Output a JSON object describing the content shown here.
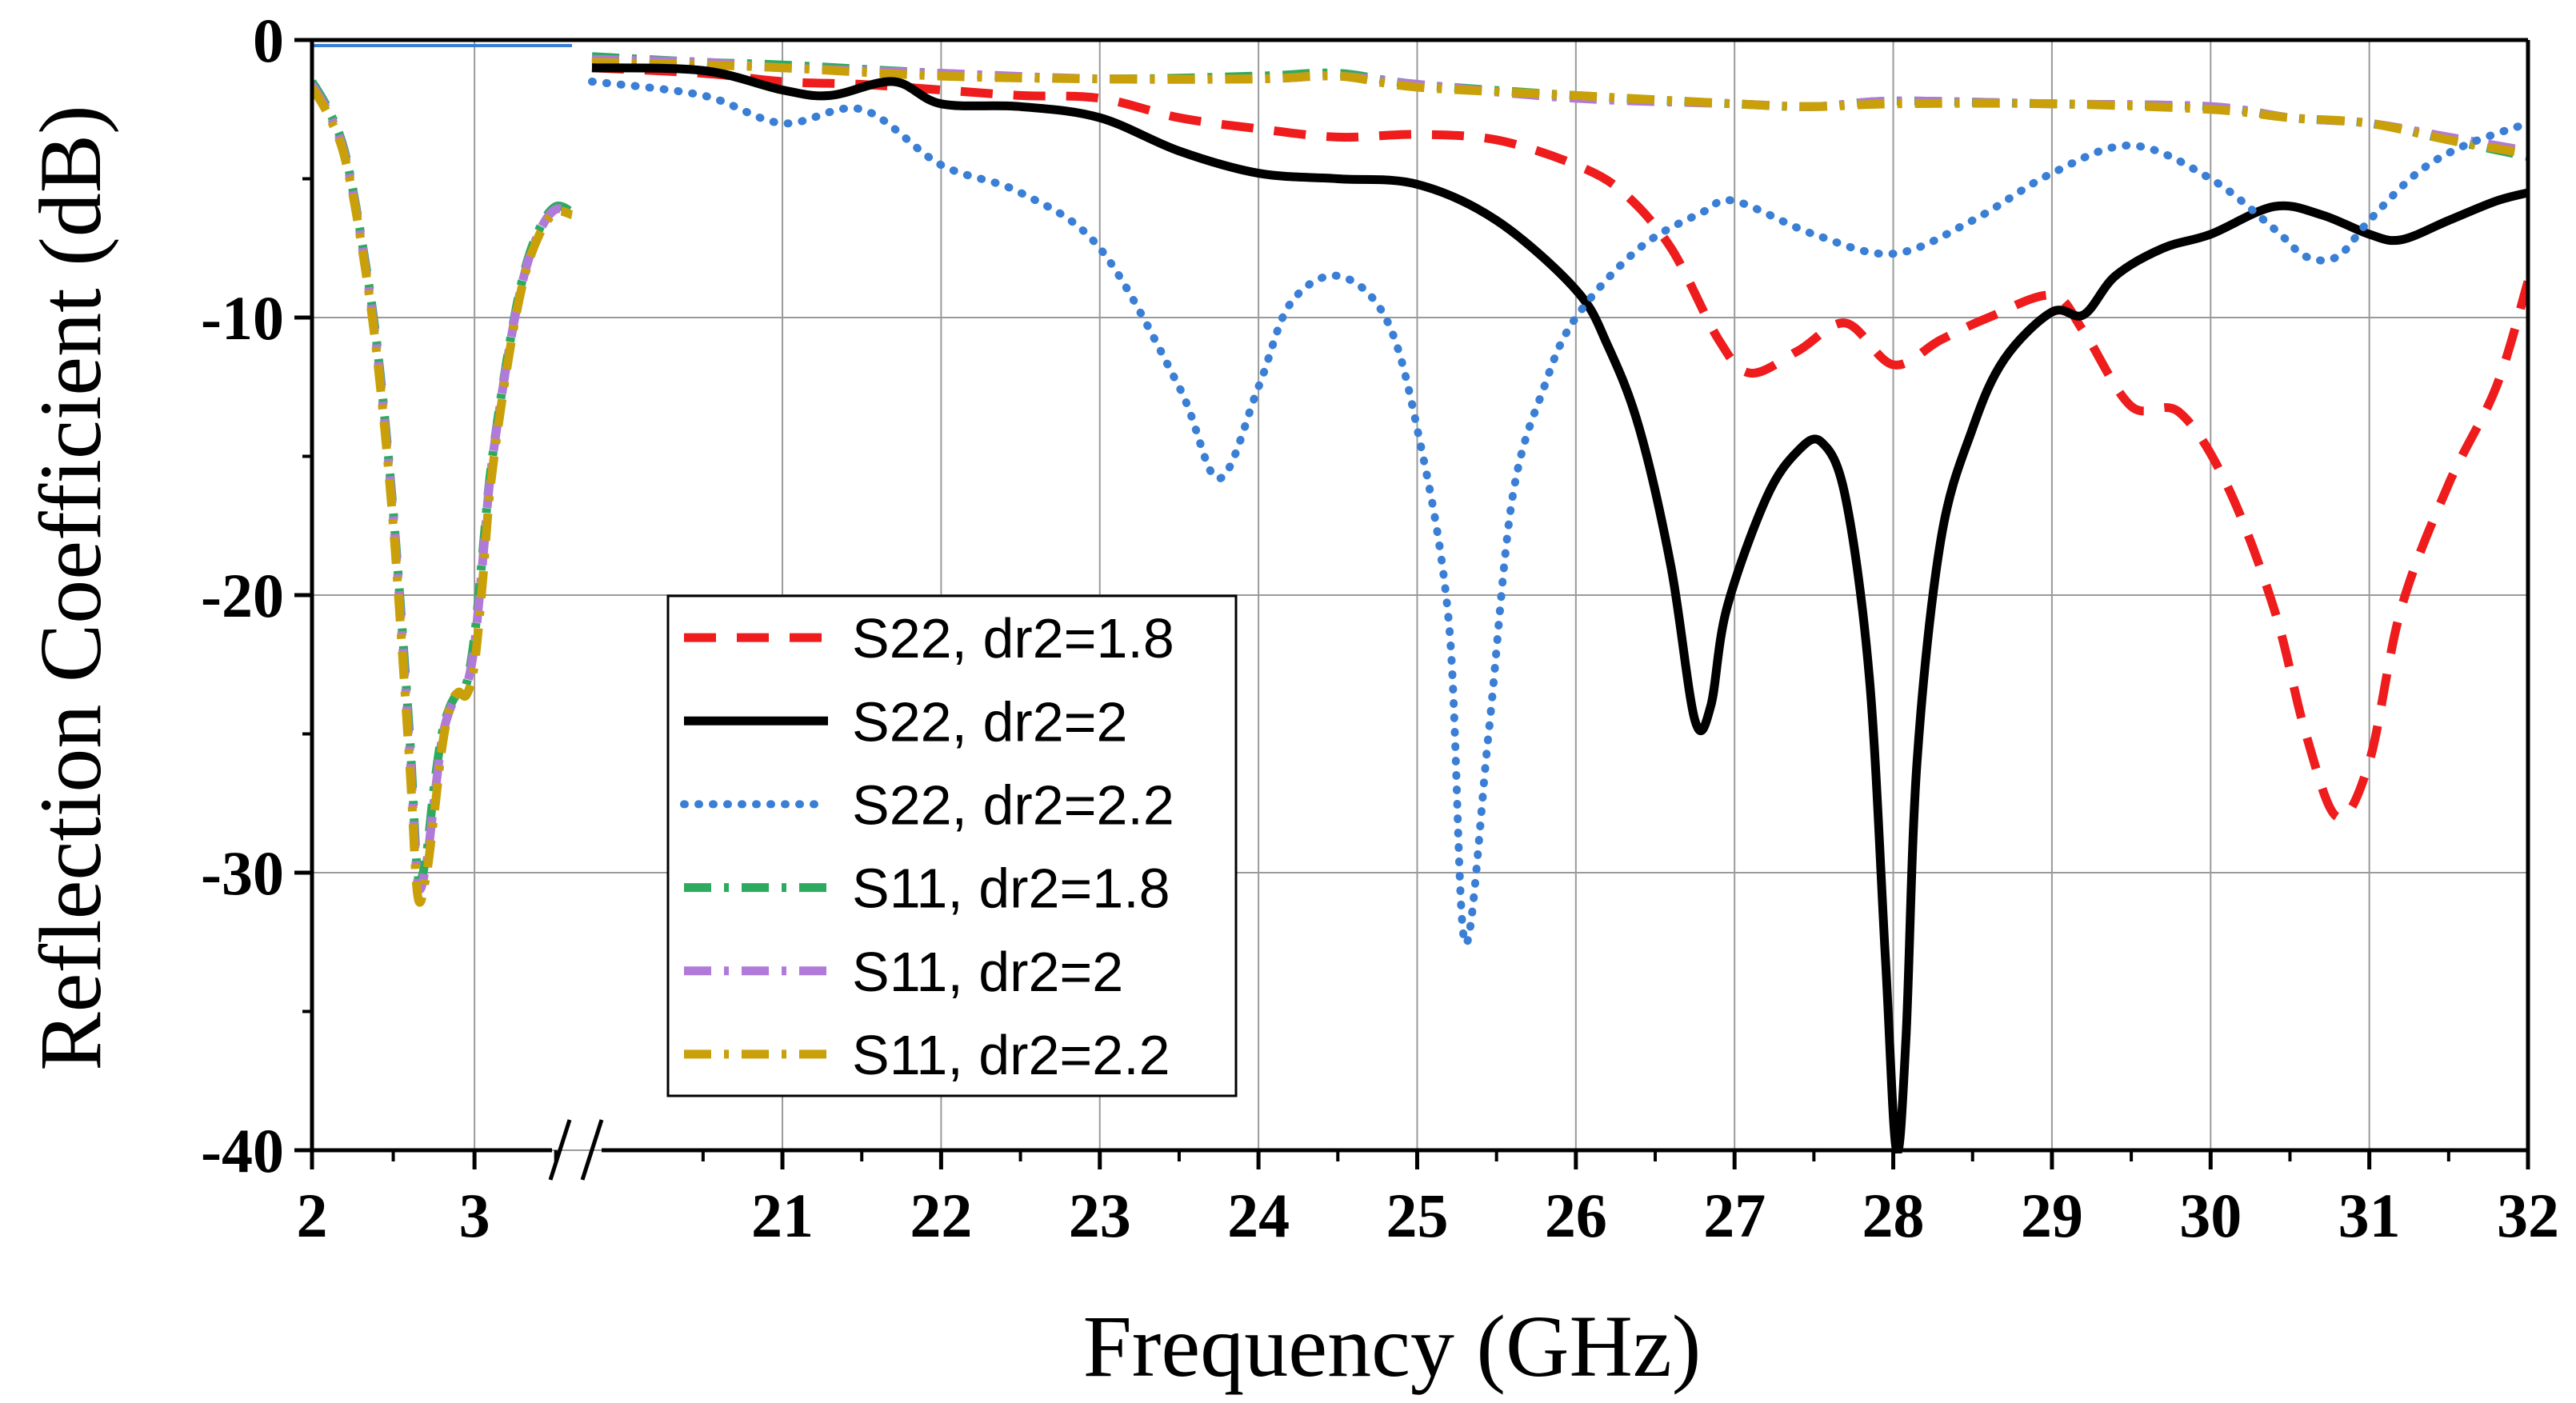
{
  "chart_data": {
    "type": "line",
    "title": "",
    "xlabel": "Frequency (GHz)",
    "ylabel": "Reflection Coefficient (dB)",
    "ylim": [
      -40,
      0
    ],
    "grid": true,
    "axis_break": "between 3.6 and 20 GHz",
    "x_segments": [
      {
        "range": [
          2,
          3.6
        ],
        "ticks": [
          "2",
          "3"
        ],
        "tick_values": [
          2,
          3
        ]
      },
      {
        "range": [
          19.8,
          32
        ],
        "ticks": [
          "21",
          "22",
          "23",
          "24",
          "25",
          "26",
          "27",
          "28",
          "29",
          "30",
          "31",
          "32"
        ],
        "tick_values": [
          21,
          22,
          23,
          24,
          25,
          26,
          27,
          28,
          29,
          30,
          31,
          32
        ]
      }
    ],
    "y_ticks": [
      "0",
      "-10",
      "-20",
      "-30",
      "-40"
    ],
    "y_tick_values": [
      0,
      -10,
      -20,
      -30,
      -40
    ],
    "legend_position": "center-left",
    "series": [
      {
        "name": "S22, dr2=1.8",
        "color": "#ee1c1c",
        "dash": "dash",
        "x": [
          19.8,
          20.5,
          21,
          21.5,
          22,
          22.5,
          23,
          23.5,
          24,
          24.5,
          25,
          25.5,
          26,
          26.3,
          26.6,
          26.9,
          27.1,
          27.4,
          27.7,
          28,
          28.3,
          28.6,
          29,
          29.2,
          29.5,
          29.8,
          30.1,
          30.4,
          30.6,
          30.8,
          31,
          31.2,
          31.5,
          31.8,
          32
        ],
        "y": [
          -1.0,
          -1.2,
          -1.5,
          -1.6,
          -1.8,
          -2.0,
          -2.1,
          -2.8,
          -3.2,
          -3.5,
          -3.4,
          -3.6,
          -4.5,
          -5.5,
          -7.5,
          -10.8,
          -12.0,
          -11.2,
          -10.2,
          -11.7,
          -10.8,
          -10.0,
          -9.2,
          -10.5,
          -13.2,
          -13.4,
          -16.0,
          -20.5,
          -25.0,
          -28.0,
          -26.0,
          -20.5,
          -16.0,
          -12.5,
          -8.7
        ]
      },
      {
        "name": "S22, dr2=2",
        "color": "#000000",
        "dash": "solid",
        "x": [
          19.8,
          20.5,
          21,
          21.3,
          21.7,
          22,
          22.5,
          23,
          23.5,
          24,
          24.5,
          25,
          25.5,
          26,
          26.2,
          26.4,
          26.6,
          26.75,
          26.85,
          26.95,
          27.2,
          27.4,
          27.55,
          27.7,
          27.85,
          27.95,
          28.02,
          28.08,
          28.15,
          28.3,
          28.5,
          28.7,
          29,
          29.2,
          29.4,
          29.7,
          30,
          30.4,
          30.7,
          31,
          31.2,
          31.5,
          31.8,
          32
        ],
        "y": [
          -1.0,
          -1.1,
          -1.8,
          -2.0,
          -1.5,
          -2.3,
          -2.4,
          -2.8,
          -4.0,
          -4.8,
          -5.0,
          -5.2,
          -6.5,
          -9.0,
          -11.0,
          -14.0,
          -19.0,
          -24.5,
          -24.0,
          -20.5,
          -16.5,
          -14.8,
          -14.5,
          -16.5,
          -23.0,
          -33.0,
          -40.0,
          -36.0,
          -26.0,
          -18.0,
          -14.0,
          -11.5,
          -9.8,
          -9.9,
          -8.5,
          -7.5,
          -7.0,
          -6.0,
          -6.3,
          -7.0,
          -7.2,
          -6.5,
          -5.8,
          -5.5
        ]
      },
      {
        "name": "S22, dr2=2.2",
        "color": "#3a7fd5",
        "dash": "dot",
        "x": [
          19.8,
          20.5,
          21,
          21.5,
          22,
          22.5,
          23,
          23.5,
          23.75,
          24,
          24.2,
          24.5,
          24.8,
          25,
          25.2,
          25.3,
          25.45,
          25.6,
          25.8,
          26,
          26.4,
          26.8,
          27,
          27.5,
          28,
          28.5,
          29,
          29.5,
          30,
          30.4,
          30.6,
          30.8,
          31,
          31.3,
          31.6,
          32
        ],
        "y": [
          -1.5,
          -2.0,
          -3.0,
          -2.5,
          -4.5,
          -5.5,
          -7.5,
          -12.5,
          -15.8,
          -12.5,
          -9.5,
          -8.5,
          -10.0,
          -14.0,
          -21.0,
          -32.5,
          -25.0,
          -16.5,
          -12.5,
          -10.0,
          -7.5,
          -6.2,
          -5.8,
          -7.0,
          -7.7,
          -6.5,
          -4.8,
          -3.8,
          -5.0,
          -6.8,
          -7.8,
          -7.8,
          -6.5,
          -4.8,
          -3.8,
          -3.0
        ]
      },
      {
        "name": "S11, dr2=1.8",
        "color": "#2eaa60",
        "dash": "dash-dot",
        "x": [
          2,
          2.1,
          2.2,
          2.3,
          2.4,
          2.5,
          2.6,
          2.65,
          2.7,
          2.75,
          2.8,
          2.85,
          2.9,
          2.95,
          3.0,
          3.05,
          3.1,
          3.2,
          3.3,
          3.4,
          3.5,
          3.6
        ],
        "y": [
          -1.5,
          -2.5,
          -4.0,
          -7.0,
          -11.0,
          -17.0,
          -25.0,
          -30.0,
          -29.5,
          -27.0,
          -25.0,
          -24.0,
          -23.5,
          -23.2,
          -21.5,
          -18.5,
          -15.5,
          -11.5,
          -8.5,
          -6.8,
          -6.0,
          -6.2
        ]
      },
      {
        "name": "S11, dr2=2",
        "color": "#b07ad8",
        "dash": "dash-dot",
        "x": [
          2,
          2.1,
          2.2,
          2.3,
          2.4,
          2.5,
          2.6,
          2.65,
          2.7,
          2.75,
          2.8,
          2.85,
          2.9,
          2.95,
          3.0,
          3.05,
          3.1,
          3.2,
          3.3,
          3.4,
          3.5,
          3.6
        ],
        "y": [
          -1.6,
          -2.6,
          -4.1,
          -7.1,
          -11.2,
          -17.2,
          -25.5,
          -30.3,
          -29.8,
          -27.5,
          -25.2,
          -24.1,
          -23.6,
          -23.3,
          -21.8,
          -18.8,
          -15.6,
          -11.6,
          -8.6,
          -6.9,
          -6.1,
          -6.3
        ]
      },
      {
        "name": "S11, dr2=2.2",
        "color": "#c9a00a",
        "dash": "dash-dot",
        "x": [
          2,
          2.1,
          2.2,
          2.3,
          2.4,
          2.5,
          2.6,
          2.65,
          2.7,
          2.75,
          2.8,
          2.85,
          2.9,
          2.95,
          3.0,
          3.05,
          3.1,
          3.2,
          3.3,
          3.4,
          3.5,
          3.6
        ],
        "y": [
          -1.7,
          -2.7,
          -4.2,
          -7.2,
          -11.4,
          -17.5,
          -26.0,
          -30.8,
          -30.2,
          -28.0,
          -25.5,
          -24.0,
          -23.5,
          -23.6,
          -22.5,
          -19.5,
          -16.0,
          -11.8,
          -8.7,
          -7.0,
          -6.2,
          -6.3
        ]
      }
    ],
    "upper_series": [
      {
        "name": "S11, dr2=1.8 (20-32 GHz)",
        "color": "#2eaa60",
        "x": [
          19.8,
          20.5,
          21,
          22,
          23,
          24,
          24.5,
          25,
          26,
          27,
          27.5,
          28,
          29,
          30,
          30.5,
          31,
          31.5,
          32
        ],
        "y": [
          -0.6,
          -0.8,
          -0.9,
          -1.2,
          -1.4,
          -1.3,
          -1.2,
          -1.6,
          -2.0,
          -2.3,
          -2.4,
          -2.2,
          -2.3,
          -2.4,
          -2.8,
          -3.0,
          -3.6,
          -4.2
        ]
      },
      {
        "name": "S11, dr2=2 (20-32 GHz)",
        "color": "#b07ad8",
        "x": [
          19.8,
          20.5,
          21,
          22,
          23,
          24,
          24.5,
          25,
          26,
          27,
          27.5,
          28,
          29,
          30,
          30.5,
          31,
          31.5,
          32
        ],
        "y": [
          -0.7,
          -0.8,
          -1.0,
          -1.2,
          -1.4,
          -1.4,
          -1.3,
          -1.6,
          -2.1,
          -2.3,
          -2.4,
          -2.2,
          -2.3,
          -2.4,
          -2.8,
          -3.0,
          -3.5,
          -4.0
        ]
      },
      {
        "name": "S11, dr2=2.2 (20-32 GHz)",
        "color": "#c9a00a",
        "x": [
          19.8,
          20.5,
          21,
          22,
          23,
          24,
          24.5,
          25,
          26,
          27,
          27.5,
          28,
          29,
          30,
          30.5,
          31,
          31.5,
          32
        ],
        "y": [
          -0.8,
          -0.9,
          -1.0,
          -1.3,
          -1.4,
          -1.4,
          -1.3,
          -1.7,
          -2.0,
          -2.3,
          -2.4,
          -2.3,
          -2.3,
          -2.5,
          -2.8,
          -3.0,
          -3.6,
          -4.1
        ]
      }
    ],
    "flat_trace_low_band_top": {
      "color": "#3a7fd5",
      "x": [
        2,
        3.6
      ],
      "y": [
        -0.2,
        -0.2
      ]
    }
  }
}
